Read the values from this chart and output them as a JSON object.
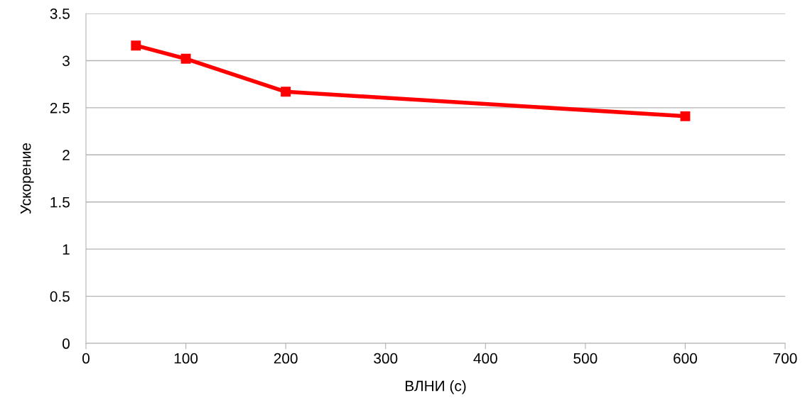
{
  "chart_data": {
    "type": "line",
    "xlabel": "ВЛНИ (с)",
    "ylabel": "Ускорение",
    "x": [
      50,
      100,
      200,
      600
    ],
    "series": [
      {
        "color": "#ff0000",
        "values": [
          3.16,
          3.02,
          2.67,
          2.41
        ]
      }
    ],
    "xlim": [
      0,
      700
    ],
    "xticks": [
      0,
      100,
      200,
      300,
      400,
      500,
      600,
      700
    ],
    "ylim": [
      0,
      3.5
    ],
    "yticks": [
      0,
      0.5,
      1,
      1.5,
      2,
      2.5,
      3,
      3.5
    ],
    "grid": "y",
    "marker": "square",
    "line_style": "solid"
  }
}
